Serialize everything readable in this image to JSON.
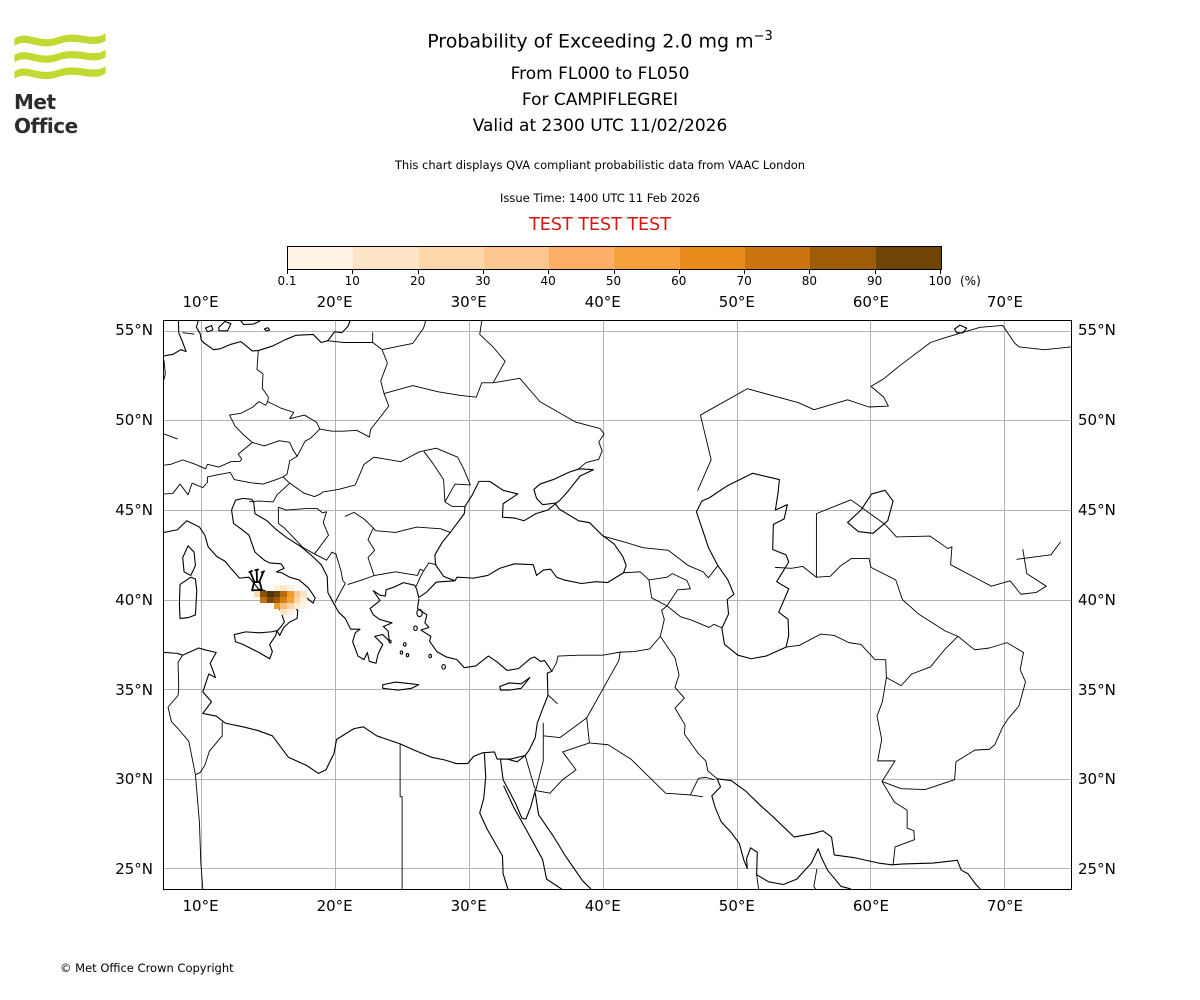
{
  "logo": {
    "text": "Met Office",
    "green": "#c3d831"
  },
  "titles": {
    "main": "Probability of Exceeding 2.0 mg m",
    "main_sup": "−3",
    "line2": "From FL000 to FL050",
    "line3": "For CAMPIFLEGREI",
    "line4": "Valid at 2300 UTC 11/02/2026",
    "note": "This chart displays QVA compliant probabilistic data from VAAC London",
    "issue": "Issue Time: 1400 UTC 11 Feb 2026",
    "test_banner": "TEST TEST TEST",
    "test_color": "#d41616"
  },
  "colorbar": {
    "tick_labels": [
      "0.1",
      "10",
      "20",
      "30",
      "40",
      "50",
      "60",
      "70",
      "80",
      "90",
      "100"
    ],
    "unit": "(%)",
    "colors": [
      "#fdf2e4",
      "#fde4c7",
      "#fdd6aa",
      "#fdc88f",
      "#fcaf67",
      "#f7a13c",
      "#e98a1d",
      "#cc7410",
      "#9f5c08",
      "#6e4504"
    ]
  },
  "map": {
    "lon_range": [
      7.2,
      75.0
    ],
    "lat_range": [
      23.85,
      55.55
    ],
    "grid_color": "#b3b3b3",
    "lon_ticks": [
      {
        "label": "10°E",
        "value": 10
      },
      {
        "label": "20°E",
        "value": 20
      },
      {
        "label": "30°E",
        "value": 30
      },
      {
        "label": "40°E",
        "value": 40
      },
      {
        "label": "50°E",
        "value": 50
      },
      {
        "label": "60°E",
        "value": 60
      },
      {
        "label": "70°E",
        "value": 70
      }
    ],
    "lat_ticks": [
      {
        "label": "55°N",
        "value": 55
      },
      {
        "label": "50°N",
        "value": 50
      },
      {
        "label": "45°N",
        "value": 45
      },
      {
        "label": "40°N",
        "value": 40
      },
      {
        "label": "35°N",
        "value": 35
      },
      {
        "label": "30°N",
        "value": 30
      },
      {
        "label": "25°N",
        "value": 25
      }
    ]
  },
  "plume": {
    "volcano": {
      "name": "CAMPIFLEGREI",
      "lon": 14.14,
      "lat": 40.83
    },
    "cell_w": 0.5,
    "cell_h": 0.333,
    "cells": [
      {
        "lon": 15.4,
        "lat": 40.47,
        "color": "#fdeedd"
      },
      {
        "lon": 15.9,
        "lat": 40.47,
        "color": "#fde7cd"
      },
      {
        "lon": 16.4,
        "lat": 40.47,
        "color": "#fdf2e6"
      },
      {
        "lon": 13.9,
        "lat": 40.13,
        "color": "#fdd9b0"
      },
      {
        "lon": 14.4,
        "lat": 40.13,
        "color": "#8a5206"
      },
      {
        "lon": 14.9,
        "lat": 40.13,
        "color": "#53350b"
      },
      {
        "lon": 15.4,
        "lat": 40.13,
        "color": "#6e4404"
      },
      {
        "lon": 15.9,
        "lat": 40.13,
        "color": "#b96d0a"
      },
      {
        "lon": 16.4,
        "lat": 40.13,
        "color": "#ef9a2e"
      },
      {
        "lon": 16.9,
        "lat": 40.13,
        "color": "#fdc98f"
      },
      {
        "lon": 17.4,
        "lat": 40.13,
        "color": "#fde3c2"
      },
      {
        "lon": 14.4,
        "lat": 39.8,
        "color": "#c27310"
      },
      {
        "lon": 14.9,
        "lat": 39.8,
        "color": "#7c4a05"
      },
      {
        "lon": 15.4,
        "lat": 39.8,
        "color": "#a05c07"
      },
      {
        "lon": 15.9,
        "lat": 39.8,
        "color": "#d68114"
      },
      {
        "lon": 16.4,
        "lat": 39.8,
        "color": "#f7a13c"
      },
      {
        "lon": 16.9,
        "lat": 39.8,
        "color": "#fdd5a7"
      },
      {
        "lon": 17.4,
        "lat": 39.8,
        "color": "#fdeedd"
      },
      {
        "lon": 15.4,
        "lat": 39.47,
        "color": "#ef9a2e"
      },
      {
        "lon": 15.9,
        "lat": 39.47,
        "color": "#fdbc7c"
      },
      {
        "lon": 16.4,
        "lat": 39.47,
        "color": "#fdd5a7"
      },
      {
        "lon": 16.9,
        "lat": 39.47,
        "color": "#fde9d4"
      },
      {
        "lon": 17.4,
        "lat": 39.47,
        "color": "#fdf2e6"
      },
      {
        "lon": 15.9,
        "lat": 39.13,
        "color": "#fde3c4"
      },
      {
        "lon": 16.4,
        "lat": 39.13,
        "color": "#fdeedd"
      }
    ]
  },
  "footer": {
    "copyright": "© Met Office Crown Copyright"
  }
}
